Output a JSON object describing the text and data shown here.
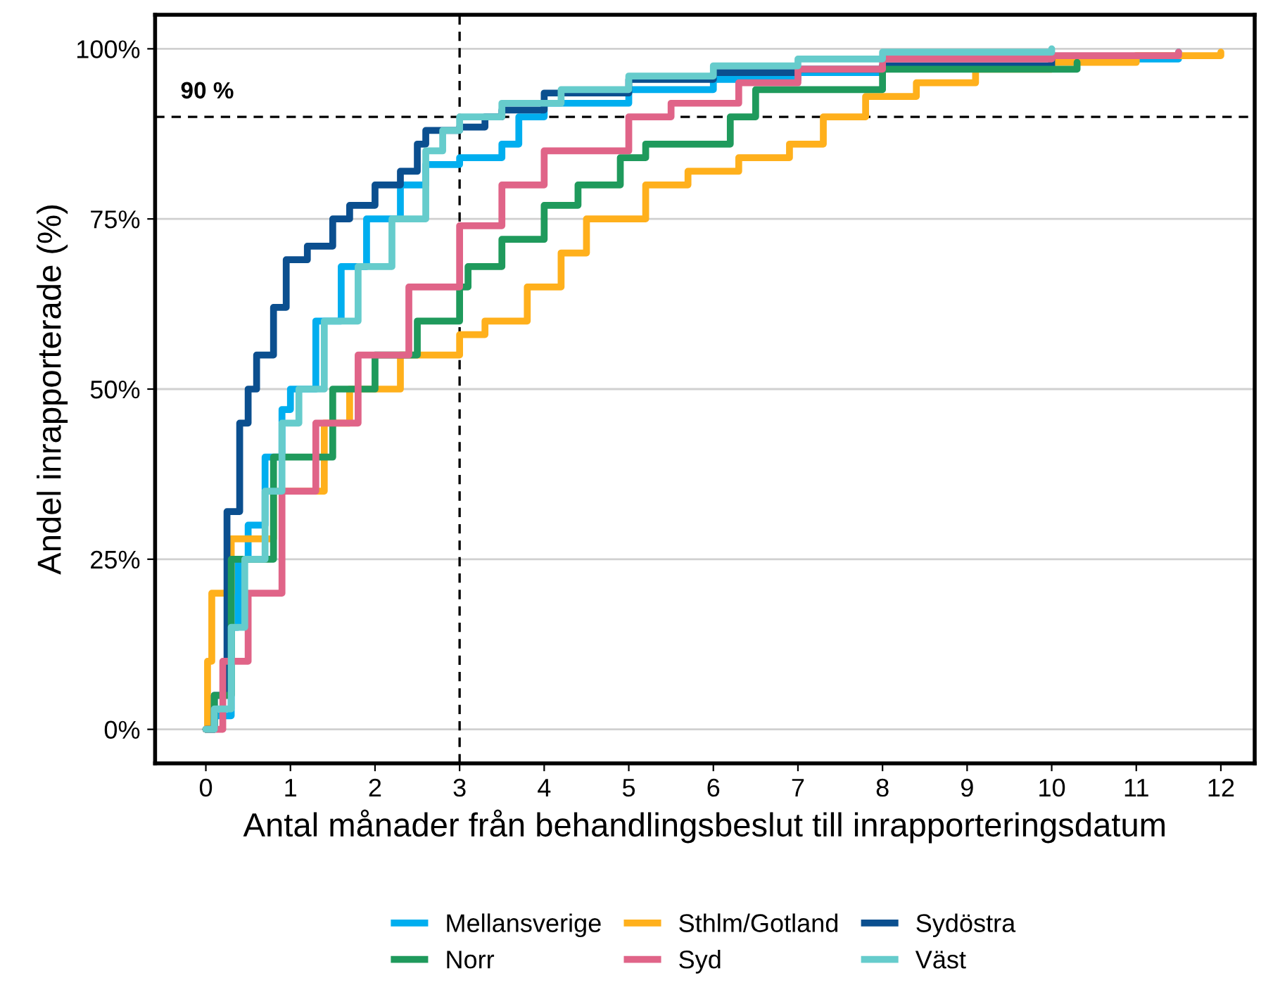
{
  "chart_data": {
    "type": "step",
    "xlabel": "Antal månader från behandlingsbeslut till inrapporteringsdatum",
    "ylabel": "Andel inrapporterade (%)",
    "xlim": [
      -0.6,
      12.4
    ],
    "xticks": [
      0,
      1,
      2,
      3,
      4,
      5,
      6,
      7,
      8,
      9,
      10,
      11,
      12
    ],
    "ylim": [
      -5,
      105
    ],
    "yticks": [
      {
        "value": 0,
        "label": "0%"
      },
      {
        "value": 25,
        "label": "25%"
      },
      {
        "value": 50,
        "label": "50%"
      },
      {
        "value": 75,
        "label": "75%"
      },
      {
        "value": 100,
        "label": "100%"
      }
    ],
    "grid": "y",
    "legend": "bottom",
    "line_style": "solid",
    "marker": "none",
    "ref_lines": [
      {
        "axis": "y",
        "value": 90,
        "label": "90 %",
        "color": "#000000",
        "line_style": "dashed"
      },
      {
        "axis": "x",
        "value": 3,
        "color": "#000000",
        "line_style": "dashed"
      }
    ],
    "series": [
      {
        "name": "Mellansverige",
        "color": "#00aeef",
        "x": [
          0,
          0.1,
          0.3,
          0.38,
          0.5,
          0.7,
          0.9,
          1.0,
          1.3,
          1.6,
          1.9,
          2.3,
          2.6,
          3.0,
          3.5,
          3.7,
          4,
          5,
          6,
          7,
          8,
          10,
          11.5
        ],
        "values": [
          0,
          2,
          15,
          25,
          30,
          40,
          47,
          50,
          60,
          68,
          75,
          80,
          83,
          84,
          86,
          90,
          92,
          94,
          95.5,
          96.5,
          97.5,
          98.5,
          99.5
        ]
      },
      {
        "name": "Sthlm/Gotland",
        "color": "#ffb01c",
        "x": [
          0,
          0.02,
          0.07,
          0.3,
          0.8,
          1.4,
          1.7,
          2.3,
          3.0,
          3.3,
          3.8,
          4.2,
          4.5,
          5.2,
          5.7,
          6.3,
          6.9,
          7.3,
          7.8,
          8.4,
          9.1,
          10,
          11,
          12
        ],
        "values": [
          0,
          10,
          20,
          28,
          35,
          45,
          50,
          55,
          58,
          60,
          65,
          70,
          75,
          80,
          82,
          84,
          86,
          90,
          93,
          95,
          97,
          98,
          99,
          99.5
        ]
      },
      {
        "name": "Sydöstra",
        "color": "#0b4f8f",
        "x": [
          0,
          0.1,
          0.25,
          0.4,
          0.5,
          0.6,
          0.8,
          0.95,
          1.2,
          1.5,
          1.7,
          2.0,
          2.3,
          2.5,
          2.6,
          3.0,
          3.3,
          3.5,
          4,
          5,
          6,
          7,
          8,
          10
        ],
        "values": [
          0,
          5,
          32,
          45,
          50,
          55,
          62,
          69,
          71,
          75,
          77,
          80,
          82,
          86,
          88,
          88.5,
          90,
          91,
          93.5,
          95.5,
          96.5,
          97,
          97.5,
          98.5
        ]
      },
      {
        "name": "Norr",
        "color": "#1f9a5c",
        "x": [
          0,
          0.1,
          0.3,
          0.8,
          1.5,
          2.0,
          2.5,
          3.0,
          3.1,
          3.5,
          4,
          4.4,
          4.9,
          5.2,
          6.0,
          6.2,
          6.5,
          7,
          8,
          10.3
        ],
        "values": [
          0,
          5,
          25,
          40,
          50,
          55,
          60,
          65,
          68,
          72,
          77,
          80,
          84,
          86,
          86,
          90,
          94,
          94,
          97,
          98
        ]
      },
      {
        "name": "Syd",
        "color": "#e06488",
        "x": [
          0,
          0.2,
          0.5,
          0.9,
          1.3,
          1.8,
          2.4,
          3.0,
          3.5,
          4,
          5,
          5.5,
          6.3,
          7,
          8,
          10,
          11.5
        ],
        "values": [
          0,
          10,
          20,
          35,
          45,
          55,
          65,
          74,
          80,
          85,
          90,
          92,
          95,
          97,
          98.5,
          99,
          99.5
        ]
      },
      {
        "name": "Väst",
        "color": "#66cccc",
        "x": [
          0,
          0.1,
          0.3,
          0.46,
          0.7,
          0.9,
          1.1,
          1.4,
          1.8,
          2.2,
          2.6,
          2.8,
          3.0,
          3.5,
          4.2,
          5,
          6,
          7,
          8,
          10
        ],
        "values": [
          0,
          3,
          15,
          25,
          35,
          45,
          50,
          60,
          68,
          75,
          85,
          88,
          90,
          92,
          94,
          96,
          97.5,
          98.5,
          99.5,
          100
        ]
      }
    ]
  }
}
